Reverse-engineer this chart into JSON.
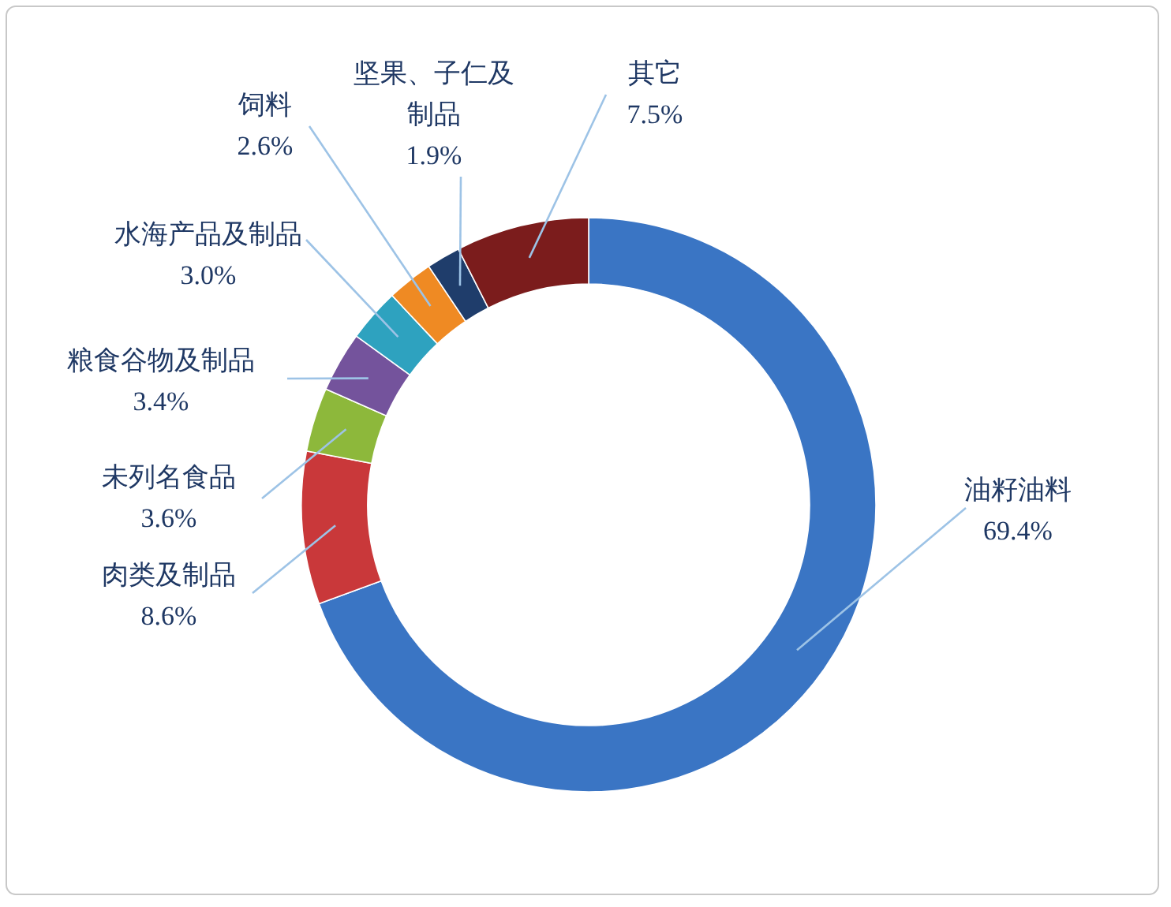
{
  "chart_data": {
    "type": "donut",
    "categories": [
      "油籽油料",
      "肉类及制品",
      "未列名食品",
      "粮食谷物及制品",
      "水海产品及制品",
      "饲料",
      "坚果、子仁及制品",
      "其它"
    ],
    "values": [
      69.4,
      8.6,
      3.6,
      3.4,
      3.0,
      2.6,
      1.9,
      7.5
    ],
    "value_labels": [
      "69.4%",
      "8.6%",
      "3.6%",
      "3.4%",
      "3.0%",
      "2.6%",
      "1.9%",
      "7.5%"
    ],
    "colors": [
      "#3a75c4",
      "#c9383a",
      "#8db83b",
      "#74539c",
      "#2ea2bf",
      "#ef8a23",
      "#1f3d6b",
      "#7b1c1c"
    ]
  }
}
